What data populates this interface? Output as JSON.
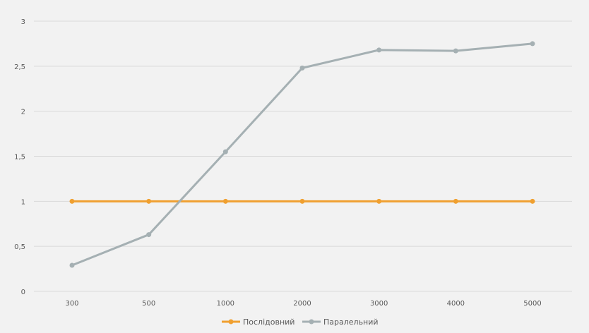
{
  "chart_data": {
    "type": "line",
    "categories": [
      "300",
      "500",
      "1000",
      "2000",
      "3000",
      "4000",
      "5000"
    ],
    "series": [
      {
        "name": "Послідовний",
        "color": "#f0a030",
        "values": [
          1,
          1,
          1,
          1,
          1,
          1,
          1
        ]
      },
      {
        "name": "Паралельний",
        "color": "#a5b0b3",
        "values": [
          0.29,
          0.63,
          1.55,
          2.48,
          2.68,
          2.67,
          2.75
        ]
      }
    ],
    "y_ticks": [
      0,
      0.5,
      1,
      1.5,
      2,
      2.5,
      3
    ],
    "y_tick_labels": [
      "0",
      "0,5",
      "1",
      "1,5",
      "2",
      "2,5",
      "3"
    ],
    "ylim": [
      0,
      3
    ],
    "grid": true,
    "legend_position": "bottom"
  }
}
